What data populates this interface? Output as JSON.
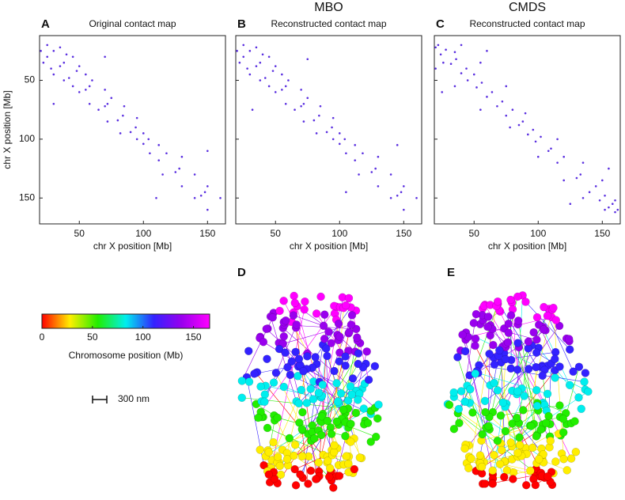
{
  "chart_data": [
    {
      "type": "scatter",
      "panel": "A",
      "title": "Original contact map",
      "xlabel": "chr X position [Mb]",
      "ylabel": "chr X position [Mb]",
      "color": "#5a2fe0",
      "xlim": [
        19,
        164
      ],
      "ylim": [
        12,
        172
      ],
      "xticks": [
        50,
        100,
        150
      ],
      "yticks": [
        50,
        100,
        150
      ],
      "x": [
        20,
        22,
        25,
        28,
        30,
        35,
        38,
        42,
        45,
        50,
        55,
        58,
        65,
        70,
        72,
        80,
        82,
        90,
        95,
        100,
        105,
        112,
        115,
        125,
        130,
        140,
        145,
        150,
        30,
        110,
        25,
        35,
        30,
        40,
        45,
        38,
        50,
        48,
        55,
        60,
        58,
        70,
        75,
        72,
        85,
        84,
        95,
        94,
        100,
        104,
        112,
        118,
        130,
        128,
        140,
        150,
        148,
        160,
        70,
        150
      ],
      "y": [
        25,
        35,
        30,
        40,
        45,
        38,
        50,
        48,
        55,
        60,
        58,
        70,
        75,
        72,
        85,
        84,
        95,
        94,
        100,
        104,
        112,
        118,
        130,
        128,
        140,
        150,
        148,
        160,
        70,
        150,
        20,
        22,
        25,
        28,
        30,
        35,
        38,
        42,
        45,
        50,
        55,
        58,
        65,
        70,
        72,
        80,
        82,
        90,
        95,
        100,
        105,
        112,
        115,
        125,
        130,
        140,
        145,
        150,
        30,
        110
      ]
    },
    {
      "type": "scatter",
      "panel": "B",
      "method": "MBO",
      "title": "Reconstructed contact map",
      "xlabel": "chr X position [Mb]",
      "color": "#5a2fe0",
      "xlim": [
        19,
        164
      ],
      "ylim": [
        12,
        172
      ],
      "xticks": [
        50,
        100,
        150
      ],
      "yticks": [
        50,
        100,
        150
      ],
      "x": [
        20,
        22,
        25,
        28,
        30,
        35,
        38,
        42,
        45,
        50,
        55,
        58,
        65,
        70,
        72,
        80,
        82,
        90,
        95,
        100,
        105,
        112,
        115,
        125,
        130,
        140,
        145,
        150,
        32,
        105,
        25,
        35,
        30,
        40,
        45,
        38,
        50,
        48,
        55,
        60,
        58,
        70,
        75,
        72,
        85,
        84,
        95,
        94,
        100,
        104,
        112,
        118,
        130,
        128,
        140,
        150,
        148,
        160,
        75,
        145
      ],
      "y": [
        25,
        35,
        30,
        40,
        45,
        38,
        50,
        48,
        55,
        60,
        58,
        70,
        75,
        72,
        85,
        84,
        95,
        94,
        100,
        104,
        112,
        118,
        130,
        128,
        140,
        150,
        148,
        160,
        75,
        145,
        20,
        22,
        25,
        28,
        30,
        35,
        38,
        42,
        45,
        50,
        55,
        58,
        65,
        70,
        72,
        80,
        82,
        90,
        95,
        100,
        105,
        112,
        115,
        125,
        130,
        140,
        145,
        150,
        32,
        105
      ]
    },
    {
      "type": "scatter",
      "panel": "C",
      "method": "CMDS",
      "title": "Reconstructed contact map",
      "xlabel": "chr X position [Mb]",
      "color": "#5a2fe0",
      "xlim": [
        19,
        164
      ],
      "ylim": [
        12,
        172
      ],
      "xticks": [
        50,
        100,
        150
      ],
      "yticks": [
        50,
        100,
        150
      ],
      "x": [
        20,
        20,
        24,
        26,
        32,
        35,
        40,
        45,
        52,
        55,
        60,
        68,
        75,
        78,
        85,
        92,
        98,
        100,
        108,
        115,
        120,
        130,
        135,
        140,
        148,
        152,
        155,
        160,
        25,
        125,
        22,
        40,
        28,
        35,
        36,
        55,
        44,
        50,
        56,
        75,
        64,
        72,
        80,
        90,
        88,
        96,
        102,
        115,
        110,
        120,
        135,
        133,
        150,
        145,
        152,
        160,
        158,
        162,
        60,
        155
      ],
      "y": [
        22,
        40,
        28,
        35,
        36,
        55,
        44,
        50,
        56,
        75,
        64,
        72,
        80,
        90,
        88,
        96,
        102,
        115,
        110,
        120,
        135,
        133,
        150,
        145,
        152,
        160,
        158,
        162,
        60,
        155,
        20,
        20,
        24,
        26,
        32,
        35,
        40,
        45,
        52,
        55,
        60,
        68,
        75,
        78,
        85,
        92,
        98,
        100,
        108,
        115,
        120,
        130,
        135,
        140,
        148,
        152,
        155,
        160,
        25,
        125
      ]
    },
    {
      "type": "colorbar",
      "label": "Chromosome position (Mb)",
      "xlim": [
        0,
        166
      ],
      "xticks": [
        0,
        50,
        100,
        150
      ],
      "colors": [
        "#ff0000",
        "#ffee00",
        "#22ee00",
        "#00eeee",
        "#3322ff",
        "#9900ee",
        "#ff00ff"
      ]
    }
  ],
  "figure": {
    "panels_3d": [
      "D",
      "E"
    ],
    "scale_bar": "300 nm"
  }
}
